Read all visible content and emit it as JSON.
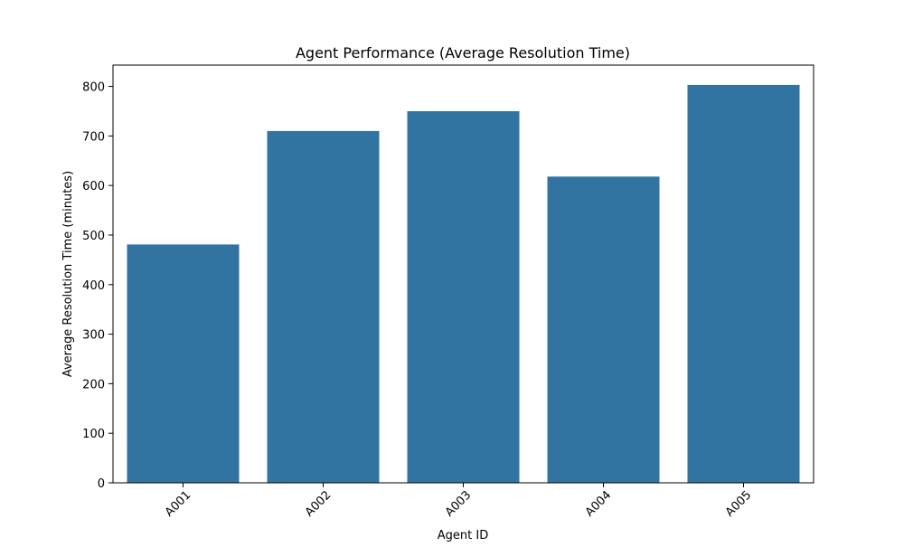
{
  "chart_data": {
    "type": "bar",
    "title": "Agent Performance (Average Resolution Time)",
    "xlabel": "Agent ID",
    "ylabel": "Average Resolution Time (minutes)",
    "categories": [
      "A001",
      "A002",
      "A003",
      "A004",
      "A005"
    ],
    "values": [
      481,
      710,
      750,
      618,
      803
    ],
    "ylim": [
      0,
      843
    ],
    "yticks": [
      0,
      100,
      200,
      300,
      400,
      500,
      600,
      700,
      800
    ],
    "bar_color": "#3274a1",
    "grid": false,
    "legend": "none"
  }
}
